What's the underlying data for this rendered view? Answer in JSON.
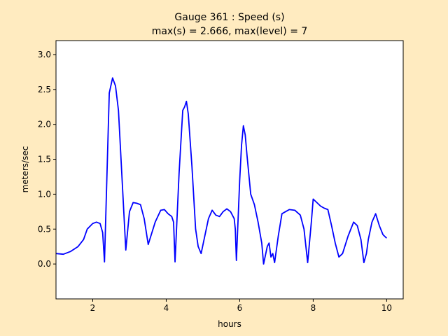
{
  "chart_data": {
    "type": "line",
    "title": "Gauge 361 : Speed (s)",
    "subtitle": "max(s) =   2.666,    max(level) = 7",
    "x_label": "hours",
    "y_label": "meters/sec",
    "color": "#0000ff",
    "x": [
      1.0,
      1.2,
      1.4,
      1.6,
      1.75,
      1.85,
      2.0,
      2.1,
      2.2,
      2.27,
      2.32,
      2.45,
      2.54,
      2.62,
      2.7,
      2.8,
      2.9,
      3.0,
      3.1,
      3.2,
      3.3,
      3.4,
      3.51,
      3.7,
      3.85,
      3.95,
      4.05,
      4.15,
      4.2,
      4.24,
      4.35,
      4.45,
      4.5,
      4.55,
      4.6,
      4.7,
      4.8,
      4.87,
      4.95,
      5.05,
      5.15,
      5.25,
      5.35,
      5.45,
      5.55,
      5.65,
      5.75,
      5.85,
      5.88,
      5.91,
      6.0,
      6.05,
      6.1,
      6.15,
      6.2,
      6.3,
      6.4,
      6.5,
      6.6,
      6.65,
      6.75,
      6.8,
      6.85,
      6.9,
      6.95,
      7.05,
      7.15,
      7.25,
      7.35,
      7.5,
      7.65,
      7.75,
      7.85,
      7.95,
      8.0,
      8.1,
      8.2,
      8.3,
      8.4,
      8.5,
      8.6,
      8.7,
      8.8,
      8.95,
      9.1,
      9.2,
      9.3,
      9.38,
      9.45,
      9.5,
      9.6,
      9.7,
      9.8,
      9.9,
      10.0
    ],
    "values": [
      0.15,
      0.14,
      0.18,
      0.25,
      0.35,
      0.5,
      0.58,
      0.6,
      0.58,
      0.45,
      0.03,
      2.45,
      2.666,
      2.55,
      2.2,
      1.2,
      0.2,
      0.75,
      0.88,
      0.87,
      0.85,
      0.65,
      0.28,
      0.6,
      0.77,
      0.78,
      0.72,
      0.68,
      0.6,
      0.03,
      1.3,
      2.2,
      2.25,
      2.33,
      2.15,
      1.4,
      0.5,
      0.25,
      0.15,
      0.4,
      0.65,
      0.77,
      0.7,
      0.68,
      0.75,
      0.79,
      0.75,
      0.65,
      0.5,
      0.05,
      1.2,
      1.7,
      1.98,
      1.85,
      1.55,
      1.0,
      0.85,
      0.6,
      0.3,
      0.0,
      0.25,
      0.3,
      0.1,
      0.15,
      0.02,
      0.4,
      0.72,
      0.75,
      0.78,
      0.77,
      0.7,
      0.5,
      0.02,
      0.6,
      0.93,
      0.88,
      0.83,
      0.8,
      0.78,
      0.55,
      0.3,
      0.1,
      0.15,
      0.4,
      0.6,
      0.55,
      0.35,
      0.02,
      0.15,
      0.35,
      0.6,
      0.72,
      0.55,
      0.42,
      0.37
    ],
    "xlim": [
      1,
      10.45
    ],
    "ylim": [
      -0.5,
      3.2
    ],
    "xticks": [
      2,
      4,
      6,
      8,
      10
    ],
    "yticks": [
      {
        "value": 0,
        "label": "0.0"
      },
      0.5,
      {
        "value": 1,
        "label": "1.0"
      },
      1.5,
      {
        "value": 2,
        "label": "2.0"
      },
      2.5,
      {
        "value": 3,
        "label": "3.0"
      }
    ]
  }
}
